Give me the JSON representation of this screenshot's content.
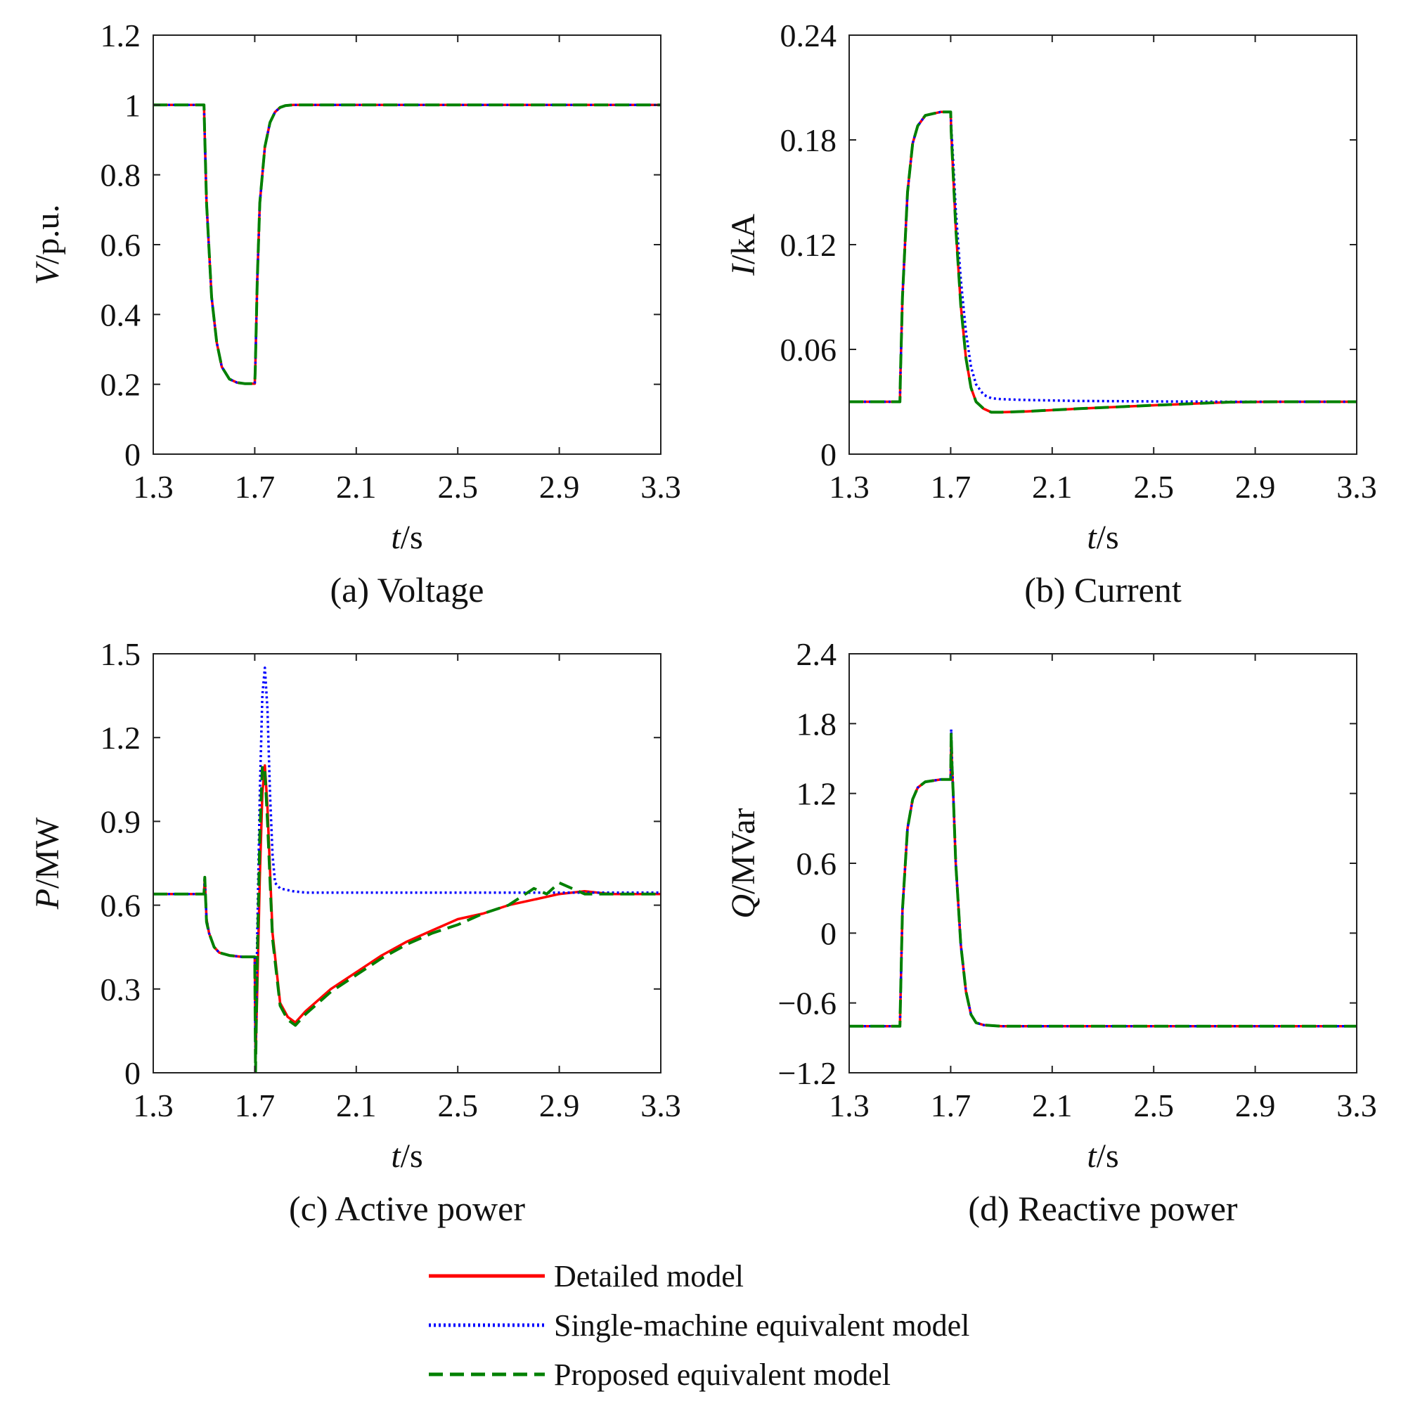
{
  "figure": {
    "legend": [
      {
        "name": "Detailed model",
        "color": "#ff0000",
        "dash": "solid"
      },
      {
        "name": "Single-machine equivalent model",
        "color": "#0000ff",
        "dash": "dotted"
      },
      {
        "name": "Proposed equivalent model",
        "color": "#008000",
        "dash": "dashed"
      }
    ]
  },
  "chart_data": [
    {
      "id": "a",
      "type": "line",
      "caption": "(a) Voltage",
      "ylabel_var": "V",
      "ylabel_unit": "/p.u.",
      "xlabel_var": "t",
      "xlabel_unit": "/s",
      "xlim": [
        1.3,
        3.3
      ],
      "ylim": [
        0,
        1.2
      ],
      "xticks": [
        "1.3",
        "1.7",
        "2.1",
        "2.5",
        "2.9",
        "3.3"
      ],
      "yticks": [
        "0",
        "0.2",
        "0.4",
        "0.6",
        "0.8",
        "1",
        "1.2"
      ],
      "series": [
        {
          "name": "Detailed model",
          "x": [
            1.3,
            1.5,
            1.502,
            1.51,
            1.53,
            1.55,
            1.57,
            1.6,
            1.63,
            1.66,
            1.7,
            1.702,
            1.71,
            1.72,
            1.74,
            1.76,
            1.78,
            1.8,
            1.82,
            1.85,
            1.9,
            2.0,
            2.5,
            3.0,
            3.3
          ],
          "y": [
            1.0,
            1.0,
            0.94,
            0.72,
            0.45,
            0.32,
            0.25,
            0.215,
            0.205,
            0.202,
            0.202,
            0.24,
            0.5,
            0.72,
            0.88,
            0.95,
            0.98,
            0.993,
            0.998,
            1.0,
            1.0,
            1.0,
            1.0,
            1.0,
            1.0
          ]
        },
        {
          "name": "Single-machine equivalent model",
          "x": [
            1.3,
            1.5,
            1.502,
            1.51,
            1.53,
            1.55,
            1.57,
            1.6,
            1.63,
            1.66,
            1.7,
            1.702,
            1.71,
            1.72,
            1.74,
            1.76,
            1.78,
            1.8,
            1.82,
            1.85,
            1.9,
            2.0,
            2.5,
            3.0,
            3.3
          ],
          "y": [
            1.0,
            1.0,
            0.94,
            0.72,
            0.45,
            0.32,
            0.25,
            0.215,
            0.205,
            0.202,
            0.202,
            0.24,
            0.5,
            0.72,
            0.88,
            0.95,
            0.98,
            0.993,
            0.998,
            1.0,
            1.0,
            1.0,
            1.0,
            1.0,
            1.0
          ]
        },
        {
          "name": "Proposed equivalent model",
          "x": [
            1.3,
            1.5,
            1.502,
            1.51,
            1.53,
            1.55,
            1.57,
            1.6,
            1.63,
            1.66,
            1.7,
            1.702,
            1.71,
            1.72,
            1.74,
            1.76,
            1.78,
            1.8,
            1.82,
            1.85,
            1.9,
            2.0,
            2.5,
            3.0,
            3.3
          ],
          "y": [
            1.0,
            1.0,
            0.94,
            0.72,
            0.45,
            0.32,
            0.25,
            0.215,
            0.205,
            0.202,
            0.202,
            0.24,
            0.5,
            0.72,
            0.88,
            0.95,
            0.98,
            0.993,
            0.998,
            1.0,
            1.0,
            1.0,
            1.0,
            1.0,
            1.0
          ]
        }
      ]
    },
    {
      "id": "b",
      "type": "line",
      "caption": "(b) Current",
      "ylabel_var": "I",
      "ylabel_unit": "/kA",
      "xlabel_var": "t",
      "xlabel_unit": "/s",
      "xlim": [
        1.3,
        3.3
      ],
      "ylim": [
        0,
        0.24
      ],
      "xticks": [
        "1.3",
        "1.7",
        "2.1",
        "2.5",
        "2.9",
        "3.3"
      ],
      "yticks": [
        "0",
        "0.06",
        "0.12",
        "0.18",
        "0.24"
      ],
      "series": [
        {
          "name": "Detailed model",
          "x": [
            1.3,
            1.5,
            1.502,
            1.51,
            1.53,
            1.55,
            1.57,
            1.6,
            1.63,
            1.66,
            1.7,
            1.702,
            1.71,
            1.72,
            1.74,
            1.76,
            1.78,
            1.8,
            1.83,
            1.86,
            1.9,
            2.0,
            2.2,
            2.5,
            2.8,
            3.0,
            3.3
          ],
          "y": [
            0.03,
            0.03,
            0.045,
            0.09,
            0.15,
            0.178,
            0.188,
            0.194,
            0.195,
            0.196,
            0.196,
            0.185,
            0.16,
            0.13,
            0.085,
            0.055,
            0.038,
            0.03,
            0.026,
            0.024,
            0.024,
            0.0245,
            0.026,
            0.028,
            0.0298,
            0.03,
            0.03
          ]
        },
        {
          "name": "Single-machine equivalent model",
          "x": [
            1.3,
            1.5,
            1.502,
            1.51,
            1.53,
            1.55,
            1.57,
            1.6,
            1.63,
            1.66,
            1.7,
            1.702,
            1.71,
            1.72,
            1.74,
            1.76,
            1.78,
            1.8,
            1.83,
            1.86,
            1.9,
            2.0,
            2.2,
            2.5,
            2.8,
            3.0,
            3.3
          ],
          "y": [
            0.03,
            0.03,
            0.045,
            0.09,
            0.15,
            0.178,
            0.188,
            0.194,
            0.195,
            0.196,
            0.196,
            0.188,
            0.168,
            0.14,
            0.1,
            0.07,
            0.05,
            0.04,
            0.034,
            0.032,
            0.0315,
            0.031,
            0.0305,
            0.0302,
            0.03,
            0.03,
            0.03
          ]
        },
        {
          "name": "Proposed equivalent model",
          "x": [
            1.3,
            1.5,
            1.502,
            1.51,
            1.53,
            1.55,
            1.57,
            1.6,
            1.63,
            1.66,
            1.7,
            1.702,
            1.71,
            1.72,
            1.74,
            1.76,
            1.78,
            1.8,
            1.83,
            1.86,
            1.9,
            2.0,
            2.2,
            2.5,
            2.8,
            3.0,
            3.3
          ],
          "y": [
            0.03,
            0.03,
            0.045,
            0.09,
            0.15,
            0.178,
            0.188,
            0.194,
            0.195,
            0.196,
            0.196,
            0.185,
            0.16,
            0.13,
            0.085,
            0.055,
            0.038,
            0.03,
            0.026,
            0.024,
            0.024,
            0.0245,
            0.026,
            0.028,
            0.0298,
            0.03,
            0.03
          ]
        }
      ]
    },
    {
      "id": "c",
      "type": "line",
      "caption": "(c) Active power",
      "ylabel_var": "P",
      "ylabel_unit": "/MW",
      "xlabel_var": "t",
      "xlabel_unit": "/s",
      "xlim": [
        1.3,
        3.3
      ],
      "ylim": [
        0,
        1.5
      ],
      "xticks": [
        "1.3",
        "1.7",
        "2.1",
        "2.5",
        "2.9",
        "3.3"
      ],
      "yticks": [
        "0",
        "0.3",
        "0.6",
        "0.9",
        "1.2",
        "1.5"
      ],
      "series": [
        {
          "name": "Detailed model",
          "x": [
            1.3,
            1.5,
            1.503,
            1.51,
            1.52,
            1.54,
            1.56,
            1.6,
            1.65,
            1.69,
            1.7,
            1.703,
            1.71,
            1.72,
            1.73,
            1.74,
            1.75,
            1.77,
            1.8,
            1.83,
            1.86,
            1.9,
            2.0,
            2.1,
            2.2,
            2.3,
            2.4,
            2.5,
            2.6,
            2.7,
            2.8,
            2.9,
            3.0,
            3.1,
            3.3
          ],
          "y": [
            0.64,
            0.64,
            0.7,
            0.55,
            0.5,
            0.45,
            0.43,
            0.42,
            0.415,
            0.415,
            0.415,
            0.05,
            0.3,
            0.7,
            1.0,
            1.1,
            0.95,
            0.5,
            0.25,
            0.2,
            0.18,
            0.22,
            0.3,
            0.36,
            0.42,
            0.47,
            0.51,
            0.55,
            0.57,
            0.6,
            0.62,
            0.64,
            0.65,
            0.64,
            0.64
          ]
        },
        {
          "name": "Single-machine equivalent model",
          "x": [
            1.3,
            1.5,
            1.503,
            1.51,
            1.52,
            1.54,
            1.56,
            1.6,
            1.65,
            1.69,
            1.7,
            1.703,
            1.71,
            1.72,
            1.73,
            1.74,
            1.75,
            1.76,
            1.77,
            1.78,
            1.8,
            1.85,
            1.9,
            2.0,
            2.3,
            2.6,
            2.9,
            3.3
          ],
          "y": [
            0.64,
            0.64,
            0.7,
            0.55,
            0.5,
            0.45,
            0.43,
            0.42,
            0.415,
            0.415,
            0.415,
            0.05,
            0.5,
            1.0,
            1.35,
            1.45,
            1.3,
            1.0,
            0.78,
            0.68,
            0.66,
            0.65,
            0.645,
            0.645,
            0.645,
            0.645,
            0.645,
            0.645
          ]
        },
        {
          "name": "Proposed equivalent model",
          "x": [
            1.3,
            1.5,
            1.503,
            1.51,
            1.52,
            1.54,
            1.56,
            1.6,
            1.65,
            1.69,
            1.7,
            1.703,
            1.71,
            1.72,
            1.73,
            1.74,
            1.75,
            1.77,
            1.8,
            1.83,
            1.86,
            1.9,
            2.0,
            2.1,
            2.2,
            2.3,
            2.4,
            2.5,
            2.6,
            2.7,
            2.8,
            2.85,
            2.9,
            3.0,
            3.1,
            3.3
          ],
          "y": [
            0.64,
            0.64,
            0.7,
            0.54,
            0.5,
            0.45,
            0.43,
            0.42,
            0.415,
            0.415,
            0.415,
            0.0,
            0.4,
            0.85,
            1.1,
            1.08,
            0.9,
            0.48,
            0.24,
            0.19,
            0.17,
            0.21,
            0.29,
            0.35,
            0.41,
            0.46,
            0.5,
            0.53,
            0.57,
            0.6,
            0.66,
            0.64,
            0.68,
            0.64,
            0.64,
            0.64
          ]
        }
      ]
    },
    {
      "id": "d",
      "type": "line",
      "caption": "(d) Reactive power",
      "ylabel_var": "Q",
      "ylabel_unit": "/MVar",
      "xlabel_var": "t",
      "xlabel_unit": "/s",
      "xlim": [
        1.3,
        3.3
      ],
      "ylim": [
        -1.2,
        2.4
      ],
      "xticks": [
        "1.3",
        "1.7",
        "2.1",
        "2.5",
        "2.9",
        "3.3"
      ],
      "yticks": [
        "−1.2",
        "−0.6",
        "0",
        "0.6",
        "1.2",
        "1.8",
        "2.4"
      ],
      "series": [
        {
          "name": "Detailed model",
          "x": [
            1.3,
            1.5,
            1.502,
            1.51,
            1.53,
            1.55,
            1.57,
            1.6,
            1.63,
            1.66,
            1.7,
            1.702,
            1.705,
            1.71,
            1.72,
            1.74,
            1.76,
            1.78,
            1.8,
            1.83,
            1.9,
            2.0,
            2.5,
            3.0,
            3.3
          ],
          "y": [
            -0.8,
            -0.8,
            -0.6,
            0.2,
            0.9,
            1.15,
            1.25,
            1.3,
            1.31,
            1.32,
            1.32,
            1.7,
            1.45,
            1.2,
            0.6,
            -0.1,
            -0.5,
            -0.7,
            -0.77,
            -0.79,
            -0.8,
            -0.8,
            -0.8,
            -0.8,
            -0.8
          ]
        },
        {
          "name": "Single-machine equivalent model",
          "x": [
            1.3,
            1.5,
            1.502,
            1.51,
            1.53,
            1.55,
            1.57,
            1.6,
            1.63,
            1.66,
            1.7,
            1.702,
            1.705,
            1.71,
            1.72,
            1.74,
            1.76,
            1.78,
            1.8,
            1.83,
            1.9,
            2.0,
            2.5,
            3.0,
            3.3
          ],
          "y": [
            -0.8,
            -0.8,
            -0.6,
            0.2,
            0.9,
            1.15,
            1.25,
            1.3,
            1.31,
            1.32,
            1.32,
            1.75,
            1.5,
            1.2,
            0.6,
            -0.1,
            -0.5,
            -0.7,
            -0.77,
            -0.79,
            -0.8,
            -0.8,
            -0.8,
            -0.8,
            -0.8
          ]
        },
        {
          "name": "Proposed equivalent model",
          "x": [
            1.3,
            1.5,
            1.502,
            1.51,
            1.53,
            1.55,
            1.57,
            1.6,
            1.63,
            1.66,
            1.7,
            1.702,
            1.705,
            1.71,
            1.72,
            1.74,
            1.76,
            1.78,
            1.8,
            1.83,
            1.9,
            2.0,
            2.5,
            3.0,
            3.3
          ],
          "y": [
            -0.8,
            -0.8,
            -0.6,
            0.2,
            0.9,
            1.15,
            1.25,
            1.3,
            1.31,
            1.32,
            1.32,
            1.72,
            1.45,
            1.2,
            0.6,
            -0.1,
            -0.5,
            -0.7,
            -0.77,
            -0.79,
            -0.8,
            -0.8,
            -0.8,
            -0.8,
            -0.8
          ]
        }
      ]
    }
  ]
}
